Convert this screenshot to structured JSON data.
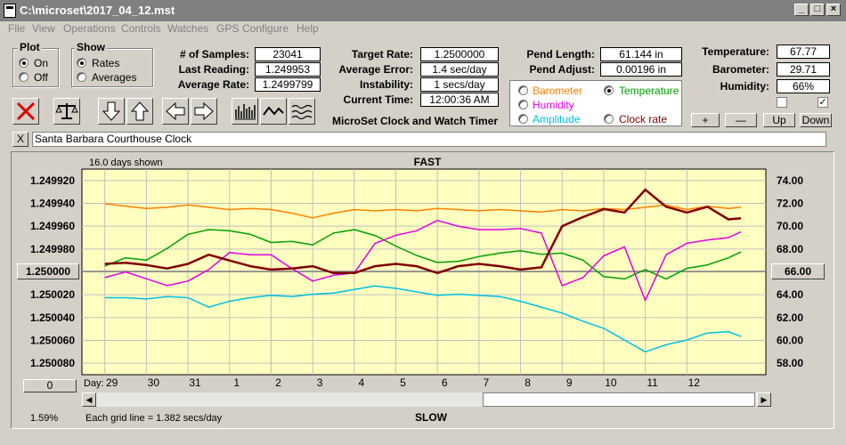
{
  "window": {
    "title": "C:\\microset\\2017_04_12.mst"
  },
  "menu": [
    "File",
    "View",
    "Operations",
    "Controls",
    "Watches",
    "GPS",
    "Configure",
    "Help"
  ],
  "plot": {
    "title": "Plot",
    "on": "On",
    "off": "Off",
    "selected": "On"
  },
  "show": {
    "title": "Show",
    "rates": "Rates",
    "averages": "Averages",
    "selected": "Rates"
  },
  "stats": {
    "samples_label": "# of Samples:",
    "samples": "23041",
    "last_label": "Last Reading:",
    "last": "1.249953",
    "avg_rate_label": "Average Rate:",
    "avg_rate": "1.2499799",
    "target_label": "Target Rate:",
    "target": "1.2500000",
    "avg_err_label": "Average Error:",
    "avg_err": "1.4 sec/day",
    "instab_label": "Instability:",
    "instab": "1 secs/day",
    "time_label": "Current Time:",
    "time": "12:00:36 AM",
    "pend_len_label": "Pend Length:",
    "pend_len": "61.144 in",
    "pend_adj_label": "Pend Adjust:",
    "pend_adj": "0.00196 in",
    "temp_label": "Temperature:",
    "temp": "67.77",
    "baro_label": "Barometer:",
    "baro": "29.71",
    "hum_label": "Humidity:",
    "hum": "66%"
  },
  "app_name": "MicroSet Clock and Watch Timer",
  "sensor_select": {
    "barometer": "Barometer",
    "temperature": "Temperature",
    "humidity": "Humidity",
    "amplitude": "Amplitude",
    "clock_rate": "Clock rate",
    "selected": "Temperature"
  },
  "adjust_buttons": {
    "plus": "+",
    "minus": "—",
    "up": "Up",
    "down": "Down"
  },
  "checkboxes": [
    false,
    true
  ],
  "clock_close": "X",
  "clock_name": "Santa Barbara Courthouse Clock",
  "colors": {
    "barometer": "#ff8000",
    "temperature": "#00a000",
    "humidity": "#e000e0",
    "amplitude": "#00c0e0",
    "clock_rate": "#800000",
    "plot_bg": "#ffffc0"
  },
  "chart_data": {
    "type": "line",
    "top_label": "FAST",
    "bottom_label": "SLOW",
    "days_shown": "16.0 days shown",
    "grid_note": "Each grid line = 1.382 secs/day",
    "footer_percent": "1.59%",
    "left_button": "1.250000",
    "right_button": "66.00",
    "zero_button": "0",
    "day_label": "Day:",
    "x_ticks": [
      "29",
      "30",
      "31",
      "1",
      "2",
      "3",
      "4",
      "5",
      "6",
      "7",
      "8",
      "9",
      "10",
      "11",
      "12"
    ],
    "x_range": [
      -0.55,
      15.9
    ],
    "y_left": {
      "ticks": [
        "1.249920",
        "1.249940",
        "1.249960",
        "1.249980",
        "",
        "1.250020",
        "1.250040",
        "1.250060",
        "1.250080"
      ],
      "range": [
        1.24991,
        1.25009
      ],
      "inverted": true
    },
    "y_right": {
      "ticks": [
        "74.00",
        "72.00",
        "70.00",
        "68.00",
        "",
        "64.00",
        "62.00",
        "60.00",
        "58.00"
      ],
      "range": [
        57.25,
        74.75
      ]
    },
    "series": [
      {
        "key": "barometer",
        "axis": "right",
        "x": [
          0,
          0.5,
          1,
          1.5,
          2,
          2.5,
          3,
          3.5,
          4,
          4.5,
          5,
          5.5,
          6,
          6.5,
          7,
          7.5,
          8,
          8.5,
          9,
          9.5,
          10,
          10.5,
          11,
          11.5,
          12,
          12.5,
          13,
          13.5,
          14,
          14.5,
          15,
          15.3
        ],
        "y": [
          71.8,
          71.6,
          71.4,
          71.5,
          71.7,
          71.5,
          71.3,
          71.4,
          71.3,
          71.0,
          70.6,
          71.0,
          71.3,
          71.2,
          71.3,
          71.2,
          71.4,
          71.3,
          71.2,
          71.3,
          71.2,
          71.1,
          71.3,
          71.2,
          71.4,
          71.3,
          71.5,
          71.7,
          71.3,
          71.6,
          71.4,
          71.5
        ]
      },
      {
        "key": "temperature",
        "axis": "right",
        "x": [
          0,
          0.5,
          1,
          1.5,
          2,
          2.5,
          3,
          3.5,
          4,
          4.5,
          5,
          5.5,
          6,
          6.5,
          7,
          7.5,
          8,
          8.5,
          9,
          9.5,
          10,
          10.5,
          11,
          11.5,
          12,
          12.5,
          13,
          13.5,
          14,
          14.5,
          15,
          15.3
        ],
        "y": [
          66.5,
          67.2,
          67.0,
          68.0,
          69.2,
          69.6,
          69.5,
          69.2,
          68.5,
          68.6,
          68.3,
          69.3,
          69.6,
          69.1,
          68.2,
          67.4,
          66.8,
          66.9,
          67.3,
          67.6,
          67.8,
          67.5,
          67.6,
          67.0,
          65.6,
          65.4,
          66.2,
          65.4,
          66.3,
          66.6,
          67.2,
          67.7
        ]
      },
      {
        "key": "humidity",
        "axis": "left",
        "x": [
          0,
          0.5,
          1,
          1.5,
          2,
          2.5,
          3,
          3.5,
          4,
          4.5,
          5,
          5.5,
          6,
          6.5,
          7,
          7.5,
          8,
          8.5,
          9,
          9.5,
          10,
          10.5,
          11,
          11.5,
          12,
          12.5,
          13,
          13.5,
          14,
          14.5,
          15,
          15.3
        ],
        "y": [
          1.250005,
          1.25,
          1.250006,
          1.250012,
          1.250008,
          1.249998,
          1.249983,
          1.249985,
          1.249985,
          1.249997,
          1.250008,
          1.250003,
          1.250001,
          1.249975,
          1.249968,
          1.249964,
          1.249955,
          1.24996,
          1.249963,
          1.249963,
          1.249962,
          1.249966,
          1.250012,
          1.250005,
          1.249986,
          1.249978,
          1.250025,
          1.249985,
          1.249975,
          1.249972,
          1.24997,
          1.249965
        ]
      },
      {
        "key": "amplitude",
        "axis": "right",
        "x": [
          0,
          0.5,
          1,
          1.5,
          2,
          2.5,
          3,
          3.5,
          4,
          4.5,
          5,
          5.5,
          6,
          6.5,
          7,
          7.5,
          8,
          8.5,
          9,
          9.5,
          10,
          10.5,
          11,
          11.5,
          12,
          12.5,
          13,
          13.5,
          14,
          14.5,
          15,
          15.3
        ],
        "y": [
          63.8,
          63.8,
          63.7,
          63.9,
          63.8,
          63.0,
          63.5,
          63.8,
          64.0,
          63.9,
          64.1,
          64.2,
          64.5,
          64.8,
          64.6,
          64.3,
          64.0,
          64.1,
          64.0,
          63.9,
          63.5,
          63.0,
          62.5,
          61.8,
          61.2,
          60.2,
          59.2,
          59.8,
          60.2,
          60.8,
          60.9,
          60.5
        ]
      },
      {
        "key": "clock_rate",
        "axis": "left",
        "x": [
          0,
          0.5,
          1,
          1.5,
          2,
          2.5,
          3,
          3.5,
          4,
          4.5,
          5,
          5.5,
          6,
          6.5,
          7,
          7.5,
          8,
          8.5,
          9,
          9.5,
          10,
          10.5,
          11,
          11.5,
          12,
          12.5,
          13,
          13.5,
          14,
          14.5,
          15,
          15.3
        ],
        "y": [
          1.249993,
          1.249992,
          1.249994,
          1.249997,
          1.249993,
          1.249985,
          1.24999,
          1.249995,
          1.249998,
          1.249997,
          1.249995,
          1.250001,
          1.250001,
          1.249995,
          1.249993,
          1.249995,
          1.250001,
          1.249995,
          1.249993,
          1.249995,
          1.249998,
          1.249996,
          1.24996,
          1.249952,
          1.249945,
          1.249948,
          1.249928,
          1.249943,
          1.249948,
          1.249943,
          1.249954,
          1.249953
        ]
      }
    ]
  }
}
